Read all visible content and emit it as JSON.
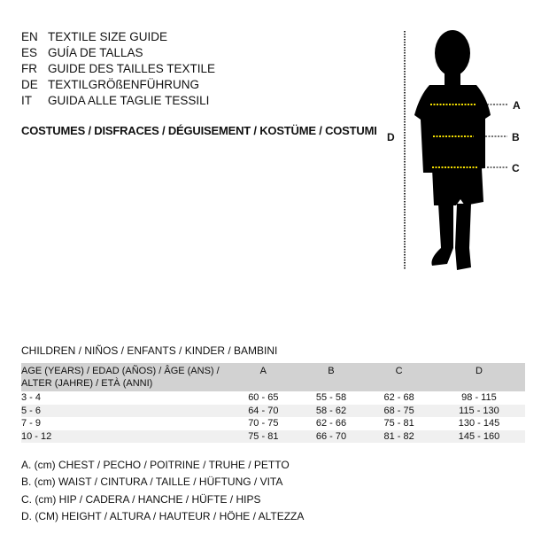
{
  "languages": [
    {
      "code": "EN",
      "title": "TEXTILE SIZE GUIDE"
    },
    {
      "code": "ES",
      "title": "GUÍA DE TALLAS"
    },
    {
      "code": "FR",
      "title": "GUIDE DES TAILLES TEXTILE"
    },
    {
      "code": "DE",
      "title": "TEXTILGRÖßENFÜHRUNG"
    },
    {
      "code": "IT",
      "title": "GUIDA ALLE TAGLIE TESSILI"
    }
  ],
  "category": "COSTUMES / DISFRACES / DÉGUISEMENT / KOSTÜME / COSTUMI",
  "figure": {
    "labels": {
      "a": "A",
      "b": "B",
      "c": "C",
      "d": "D"
    },
    "marker_color": "#f5e000"
  },
  "section": "CHILDREN / NIÑOS / ENFANTS / KINDER / BAMBINI",
  "table": {
    "headers": [
      "AGE (YEARS) / EDAD (AÑOS) / ÂGE (ANS) / ALTER (JAHRE) / ETÀ (ANNI)",
      "A",
      "B",
      "C",
      "D"
    ],
    "rows": [
      [
        "3 - 4",
        "60 - 65",
        "55 - 58",
        "62 - 68",
        "98 - 115"
      ],
      [
        "5 - 6",
        "64 - 70",
        "58 - 62",
        "68 - 75",
        "115 - 130"
      ],
      [
        "7 - 9",
        "70 - 75",
        "62 - 66",
        "75 - 81",
        "130 - 145"
      ],
      [
        "10 - 12",
        "75 - 81",
        "66 - 70",
        "81 - 82",
        "145 - 160"
      ]
    ]
  },
  "legend": [
    "A. (cm) CHEST / PECHO / POITRINE / TRUHE / PETTO",
    "B. (cm) WAIST / CINTURA / TAILLE / HÜFTUNG / VITA",
    "C. (cm) HIP / CADERA / HANCHE / HÜFTE / HIPS",
    "D. (CM) HEIGHT / ALTURA / HAUTEUR / HÖHE / ALTEZZA"
  ]
}
